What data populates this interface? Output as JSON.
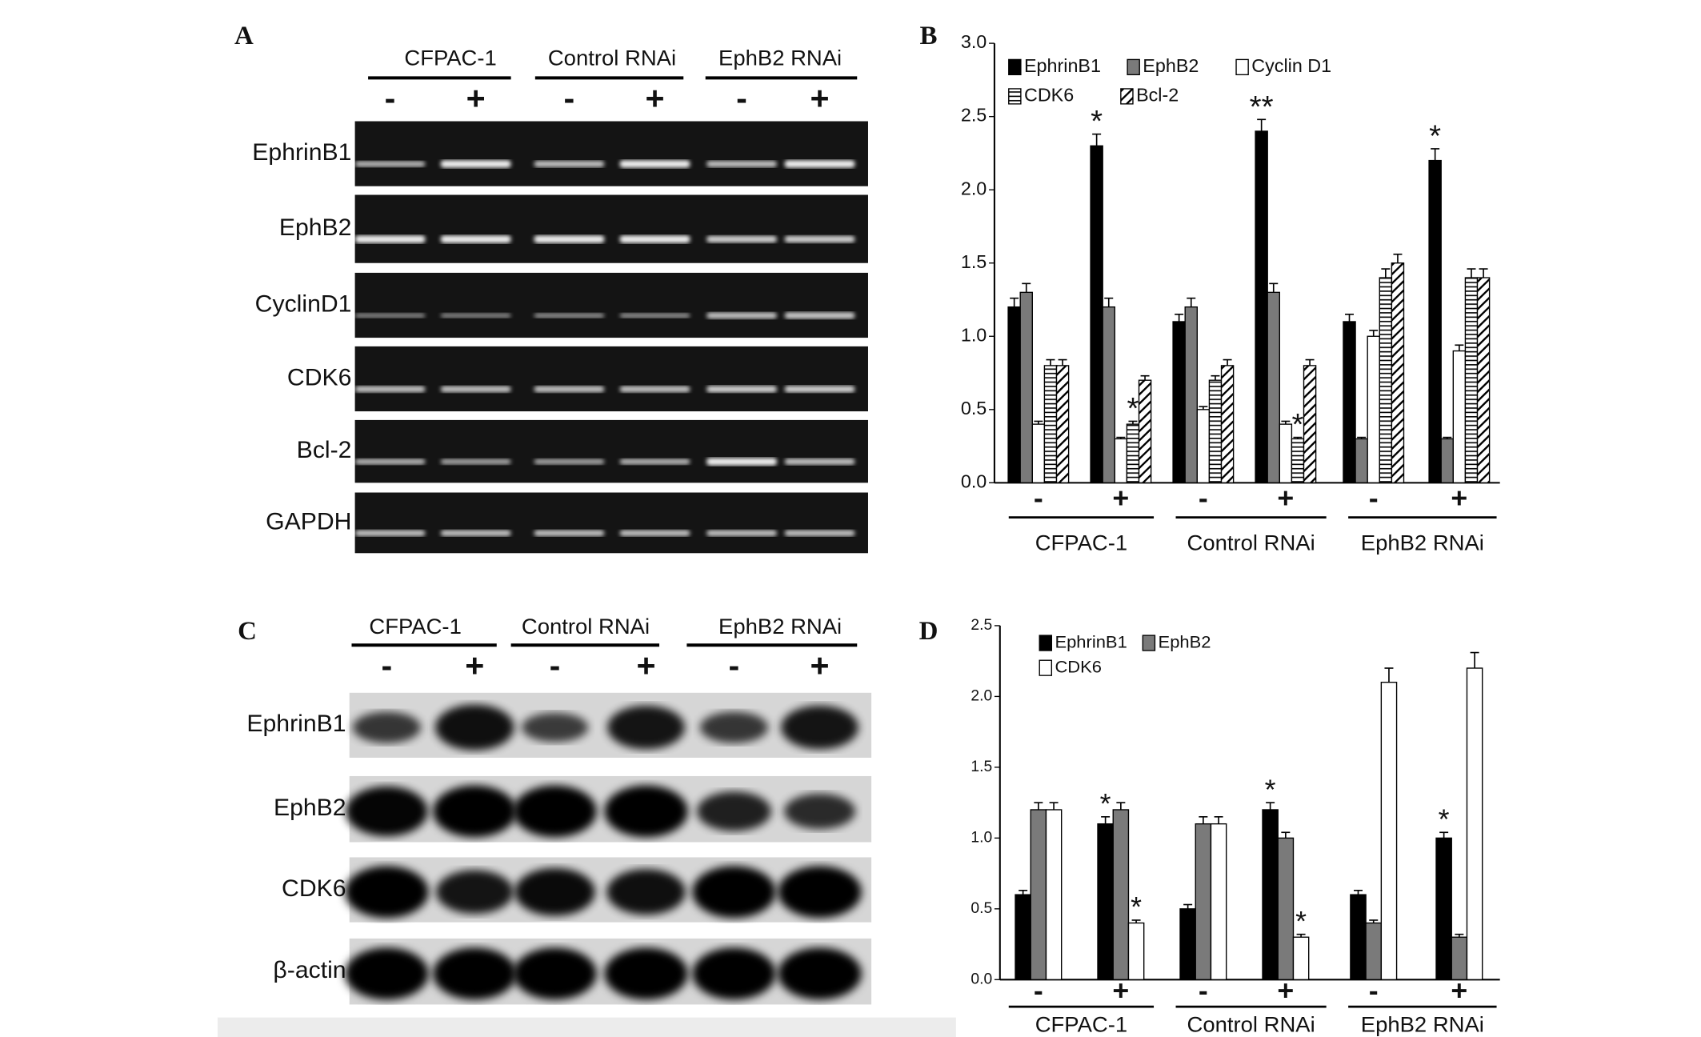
{
  "figure": {
    "panels": [
      {
        "letter": "A",
        "groups": [
          "CFPAC-1",
          "Control RNAi",
          "EphB2 RNAi"
        ],
        "signs": [
          "-",
          "+",
          "-",
          "+",
          "-",
          "+"
        ],
        "rows": [
          "EphrinB1",
          "EphB2",
          "CyclinD1",
          "CDK6",
          "Bcl-2",
          "GAPDH"
        ]
      },
      {
        "letter": "C",
        "groups": [
          "CFPAC-1",
          "Control RNAi",
          "EphB2 RNAi"
        ],
        "signs": [
          "-",
          "+",
          "-",
          "+",
          "-",
          "+"
        ],
        "rows": [
          "EphrinB1",
          "EphB2",
          "CDK6",
          "β-actin"
        ]
      },
      {
        "letter": "B"
      },
      {
        "letter": "D"
      }
    ]
  },
  "chart_data": [
    {
      "type": "bar",
      "categories": [
        "-",
        "+",
        "-",
        "+",
        "-",
        "+"
      ],
      "groups": [
        "CFPAC-1",
        "Control RNAi",
        "EphB2 RNAi"
      ],
      "ylim": [
        0,
        3
      ],
      "yticks": [
        {
          "value": 0,
          "label": "0.0"
        },
        0.5,
        {
          "value": 1,
          "label": "1.0"
        },
        1.5,
        {
          "value": 2,
          "label": "2.0"
        },
        2.5,
        {
          "value": 3,
          "label": "3.0"
        }
      ],
      "series": [
        {
          "name": "EphrinB1",
          "color": "#000000",
          "values": [
            1.2,
            2.3,
            1.1,
            2.4,
            1.1,
            2.2
          ],
          "errors": [
            0.06,
            0.08,
            0.05,
            0.08,
            0.05,
            0.08
          ]
        },
        {
          "name": "EphB2",
          "color": "#7a7a7a",
          "values": [
            1.3,
            1.2,
            1.2,
            1.3,
            0.3,
            0.3
          ],
          "errors": [
            0.06,
            0.06,
            0.06,
            0.06,
            0.01,
            0.01
          ]
        },
        {
          "name": "Cyclin D1",
          "color": "#ffffff",
          "values": [
            0.4,
            0.3,
            0.5,
            0.4,
            1.0,
            0.9
          ],
          "errors": [
            0.02,
            0.01,
            0.02,
            0.02,
            0.04,
            0.04
          ]
        },
        {
          "name": "CDK6",
          "color": "#ffffff",
          "pattern": "hlines",
          "values": [
            0.8,
            0.4,
            0.7,
            0.3,
            1.4,
            1.4
          ],
          "errors": [
            0.04,
            0.02,
            0.03,
            0.01,
            0.06,
            0.06
          ]
        },
        {
          "name": "Bcl-2",
          "color": "#ffffff",
          "pattern": "diagonal",
          "values": [
            0.8,
            0.7,
            0.8,
            0.8,
            1.5,
            1.4
          ],
          "errors": [
            0.04,
            0.03,
            0.04,
            0.04,
            0.06,
            0.06
          ]
        }
      ],
      "annotations": [
        {
          "text": "*",
          "series": 0,
          "index": 1
        },
        {
          "text": "*",
          "series": 3,
          "index": 1
        },
        {
          "text": "**",
          "series": 0,
          "index": 3
        },
        {
          "text": "*",
          "series": 3,
          "index": 3
        },
        {
          "text": "*",
          "series": 0,
          "index": 5
        }
      ]
    },
    {
      "type": "bar",
      "categories": [
        "-",
        "+",
        "-",
        "+",
        "-",
        "+"
      ],
      "groups": [
        "CFPAC-1",
        "Control RNAi",
        "EphB2 RNAi"
      ],
      "ylim": [
        0,
        2.5
      ],
      "yticks": [
        {
          "value": 0,
          "label": "0.0"
        },
        0.5,
        {
          "value": 1,
          "label": "1.0"
        },
        1.5,
        {
          "value": 2,
          "label": "2.0"
        },
        2.5
      ],
      "series": [
        {
          "name": "EphrinB1",
          "color": "#000000",
          "values": [
            0.6,
            1.1,
            0.5,
            1.2,
            0.6,
            1.0
          ],
          "errors": [
            0.03,
            0.05,
            0.03,
            0.05,
            0.03,
            0.04
          ]
        },
        {
          "name": "EphB2",
          "color": "#7a7a7a",
          "values": [
            1.2,
            1.2,
            1.1,
            1.0,
            0.4,
            0.3
          ],
          "errors": [
            0.05,
            0.05,
            0.05,
            0.04,
            0.02,
            0.02
          ]
        },
        {
          "name": "CDK6",
          "color": "#ffffff",
          "values": [
            1.2,
            0.4,
            1.1,
            0.3,
            2.1,
            2.2
          ],
          "errors": [
            0.05,
            0.02,
            0.05,
            0.02,
            0.1,
            0.11
          ]
        }
      ],
      "annotations": [
        {
          "text": "*",
          "series": 0,
          "index": 1
        },
        {
          "text": "*",
          "series": 2,
          "index": 1
        },
        {
          "text": "*",
          "series": 0,
          "index": 3
        },
        {
          "text": "*",
          "series": 2,
          "index": 3
        },
        {
          "text": "*",
          "series": 0,
          "index": 5
        }
      ]
    }
  ]
}
